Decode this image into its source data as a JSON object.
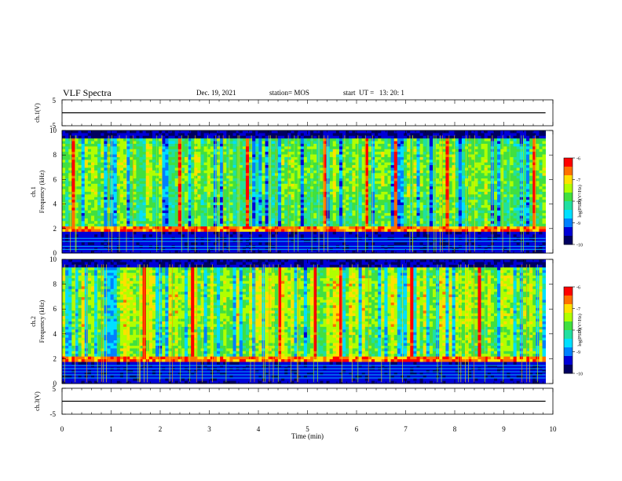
{
  "header": {
    "title": "VLF Spectra",
    "date": "Dec. 19, 2021",
    "station": "station= MOS",
    "start_ut": "start  UT =   13: 20: 1"
  },
  "colors": {
    "spectrogram_map": [
      "#000060",
      "#0000d8",
      "#0080ff",
      "#00e0ff",
      "#20e0a0",
      "#40e040",
      "#b0ff00",
      "#ffe000",
      "#ff7000",
      "#ff0000",
      "#ffffff"
    ],
    "trace": "#000000"
  },
  "chart_data": [
    {
      "type": "line",
      "panel": "ch.1 waveform",
      "ylabel": "ch.1(V)",
      "ylim": [
        -5,
        5
      ],
      "yticks": [
        "5",
        "-5"
      ],
      "xlim": [
        0,
        10
      ],
      "series": [
        {
          "values": [
            0,
            0
          ],
          "x": [
            0,
            9.85
          ]
        }
      ]
    },
    {
      "type": "heatmap",
      "panel": "ch.1 spectrogram",
      "ylabel_line1": "ch.1",
      "ylabel_line2": "Frequency (kHz)",
      "ylim": [
        0,
        10
      ],
      "yticks": [
        "0",
        "2",
        "4",
        "6",
        "8",
        "10"
      ],
      "xlim": [
        0,
        10
      ],
      "data_extent_x": [
        0,
        9.85
      ],
      "colorbar": {
        "label": "log(PSD)(V²/Hz)",
        "range": [
          -10,
          -6
        ],
        "ticks": [
          "-6",
          "-7",
          "-8",
          "-9",
          "-10"
        ]
      }
    },
    {
      "type": "heatmap",
      "panel": "ch.2 spectrogram",
      "ylabel_line1": "ch.2",
      "ylabel_line2": "Frequency (kHz)",
      "ylim": [
        0,
        10
      ],
      "yticks": [
        "0",
        "2",
        "4",
        "6",
        "8",
        "10"
      ],
      "xlim": [
        0,
        10
      ],
      "data_extent_x": [
        0,
        9.85
      ],
      "colorbar": {
        "label": "log(PSD)(V²/Hz)",
        "range": [
          -10,
          -6
        ],
        "ticks": [
          "-6",
          "-7",
          "-8",
          "-9",
          "-10"
        ]
      }
    },
    {
      "type": "line",
      "panel": "ch.3 waveform",
      "ylabel": "ch.3(V)",
      "ylim": [
        -5,
        5
      ],
      "yticks": [
        "5",
        "-5"
      ],
      "xlim": [
        0,
        10
      ],
      "xlabel": "Time  (min)",
      "xticks": [
        "0",
        "1",
        "2",
        "3",
        "4",
        "5",
        "6",
        "7",
        "8",
        "9",
        "10"
      ],
      "series": [
        {
          "values": [
            0,
            0
          ],
          "x": [
            0,
            9.85
          ]
        }
      ]
    }
  ]
}
